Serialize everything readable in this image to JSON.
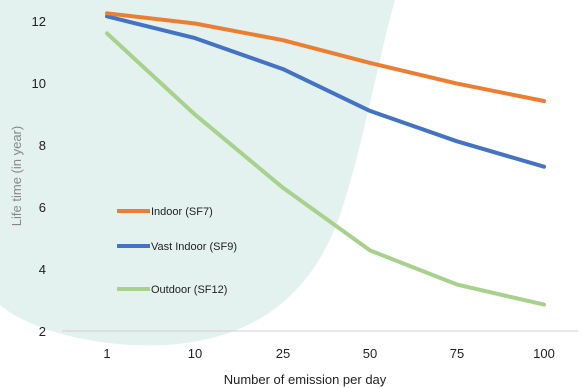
{
  "chart_data": {
    "type": "line",
    "categories": [
      "1",
      "10",
      "25",
      "50",
      "75",
      "100"
    ],
    "xlabel": "Number of emission per day",
    "ylabel": "Life time (in year)",
    "ylim": [
      2,
      12
    ],
    "yticks": [
      2,
      4,
      6,
      8,
      10,
      12
    ],
    "grid": false,
    "legend": "center-left, inside plot area",
    "series": [
      {
        "name": "Indoor (SF7)",
        "color": "#ED7D31",
        "values": [
          12.25,
          11.92,
          11.38,
          10.65,
          9.98,
          9.42
        ]
      },
      {
        "name": "Vast Indoor (SF9)",
        "color": "#4472C4",
        "values": [
          12.15,
          11.45,
          10.45,
          9.1,
          8.12,
          7.3
        ]
      },
      {
        "name": "Outdoor (SF12)",
        "color": "#A9D18E",
        "values": [
          11.6,
          8.98,
          6.62,
          4.6,
          3.5,
          2.85
        ]
      }
    ],
    "background_shape_color": "#E3F1EF"
  }
}
